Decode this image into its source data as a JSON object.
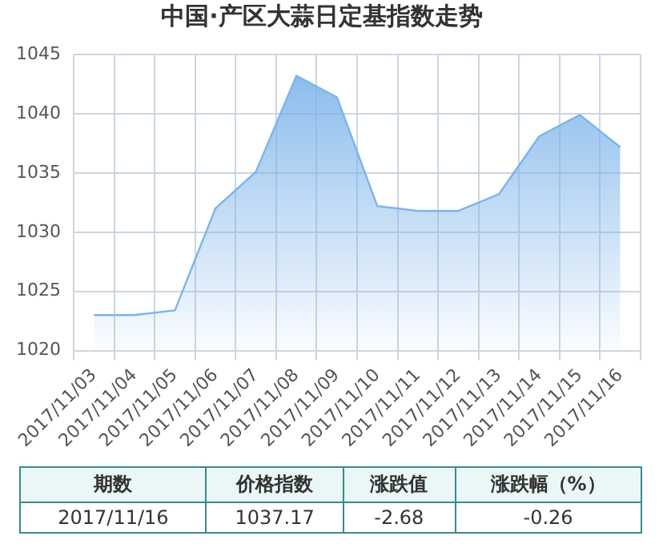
{
  "chart_data": {
    "type": "area",
    "title": "中国·产区大蒜日定基指数走势",
    "categories": [
      "2017/11/03",
      "2017/11/04",
      "2017/11/05",
      "2017/11/06",
      "2017/11/07",
      "2017/11/08",
      "2017/11/09",
      "2017/11/10",
      "2017/11/11",
      "2017/11/12",
      "2017/11/13",
      "2017/11/14",
      "2017/11/15",
      "2017/11/16"
    ],
    "series": [
      {
        "color": "#7db4ea",
        "values": [
          1023.0,
          1023.0,
          1023.4,
          1032.0,
          1035.1,
          1043.2,
          1041.4,
          1032.2,
          1031.8,
          1031.8,
          1033.2,
          1038.1,
          1039.9,
          1037.17
        ]
      }
    ],
    "ylim": [
      1020,
      1045
    ],
    "yticks": [
      1020,
      1025,
      1030,
      1035,
      1040,
      1045
    ],
    "grid": true,
    "annotations": [
      "期数",
      "价格指数",
      "涨跌值",
      "涨跌幅（%）",
      "2017/11/16",
      "1037.17",
      "-2.68",
      "-0.26"
    ]
  }
}
